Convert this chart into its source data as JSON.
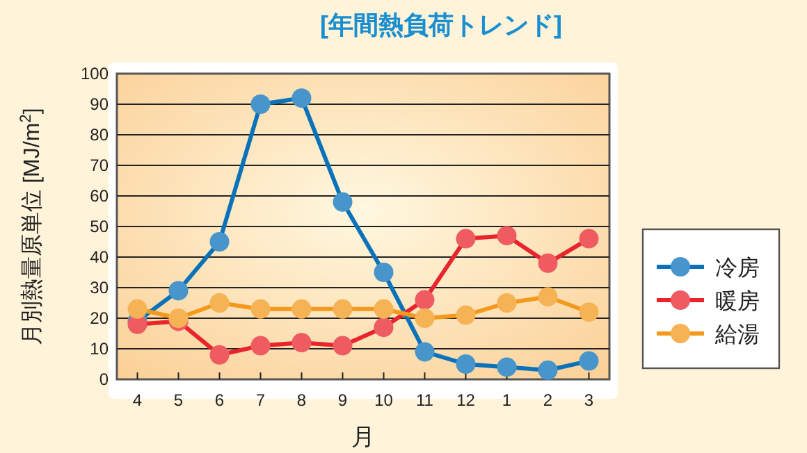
{
  "chart_data": {
    "type": "line",
    "title": "[年間熱負荷トレンド]",
    "xlabel": "月",
    "ylabel": "月別熱量原単位 [MJ/m$^{2}$]",
    "categories": [
      "4",
      "5",
      "6",
      "7",
      "8",
      "9",
      "10",
      "11",
      "12",
      "1",
      "2",
      "3"
    ],
    "series": [
      {
        "name": "冷房",
        "color": "#0a72b9",
        "values": [
          19,
          29,
          45,
          90,
          92,
          58,
          35,
          9,
          5,
          4,
          3,
          6
        ]
      },
      {
        "name": "暖房",
        "color": "#e8242c",
        "values": [
          18,
          19,
          8,
          11,
          12,
          11,
          17,
          26,
          46,
          47,
          38,
          46
        ]
      },
      {
        "name": "給湯",
        "color": "#f39a1e",
        "values": [
          23,
          20,
          25,
          23,
          23,
          23,
          23,
          20,
          21,
          25,
          27,
          22
        ]
      }
    ],
    "ylim": [
      0,
      100
    ],
    "yticks": [
      0,
      10,
      20,
      30,
      40,
      50,
      60,
      70,
      80,
      90,
      100
    ],
    "grid": "y",
    "legend": "right",
    "marker": "circle",
    "line_style": "solid"
  }
}
